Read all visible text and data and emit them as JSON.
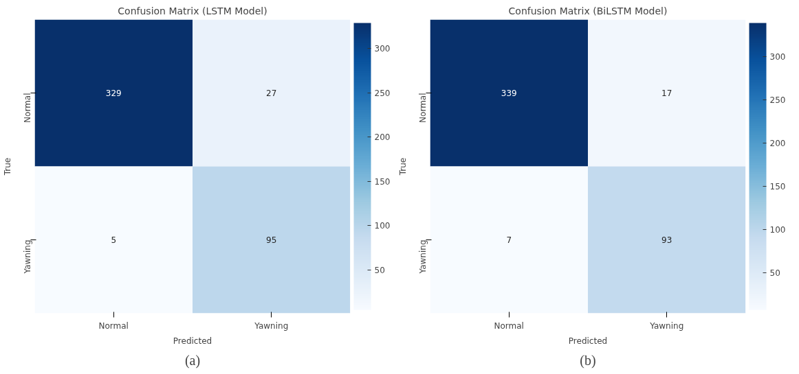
{
  "chart_data": [
    {
      "type": "heatmap",
      "title": "Confusion Matrix (LSTM Model)",
      "xlabel": "Predicted",
      "ylabel": "True",
      "categories": [
        "Normal",
        "Yawning"
      ],
      "y_categories": [
        "Normal",
        "Yawning"
      ],
      "cells": [
        [
          329,
          27
        ],
        [
          5,
          95
        ]
      ],
      "data_labels": true,
      "clim": [
        5,
        329
      ],
      "cticks": [
        50,
        100,
        150,
        200,
        250,
        300
      ],
      "annotations": [
        "(a)"
      ]
    },
    {
      "type": "heatmap",
      "title": "Confusion Matrix (BiLSTM Model)",
      "xlabel": "Predicted",
      "ylabel": "True",
      "categories": [
        "Normal",
        "Yawning"
      ],
      "y_categories": [
        "Normal",
        "Yawning"
      ],
      "cells": [
        [
          339,
          17
        ],
        [
          7,
          93
        ]
      ],
      "data_labels": true,
      "clim": [
        7,
        339
      ],
      "cticks": [
        50,
        100,
        150,
        200,
        250,
        300
      ],
      "annotations": [
        "(b)"
      ]
    }
  ]
}
